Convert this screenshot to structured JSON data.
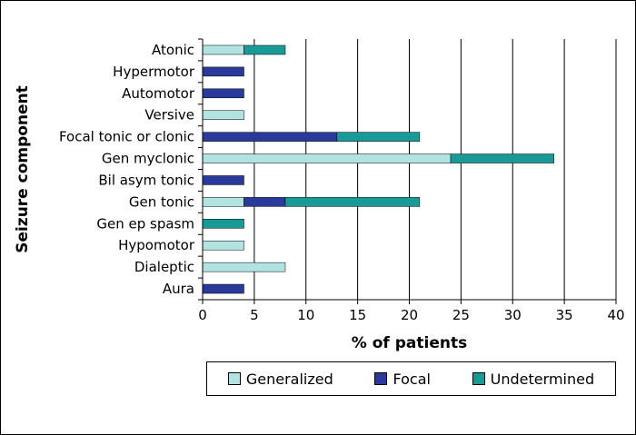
{
  "chart_data": {
    "type": "bar",
    "orientation": "horizontal",
    "stacked": true,
    "ylabel": "Seizure component",
    "xlabel": "% of patients",
    "xlim": [
      0,
      40
    ],
    "xticks": [
      0,
      5,
      10,
      15,
      20,
      25,
      30,
      35,
      40
    ],
    "categories": [
      "Atonic",
      "Hypermotor",
      "Automotor",
      "Versive",
      "Focal tonic or clonic",
      "Gen myclonic",
      "Bil asym tonic",
      "Gen tonic",
      "Gen ep spasm",
      "Hypomotor",
      "Dialeptic",
      "Aura"
    ],
    "series": [
      {
        "name": "Generalized",
        "color": "#b2e3e3",
        "values": [
          4,
          0,
          0,
          4,
          0,
          24,
          0,
          4,
          0,
          4,
          8,
          0
        ]
      },
      {
        "name": "Focal",
        "color": "#2a3a9a",
        "values": [
          0,
          4,
          4,
          0,
          13,
          0,
          4,
          4,
          0,
          0,
          0,
          4
        ]
      },
      {
        "name": "Undetermined",
        "color": "#1a9a96",
        "values": [
          4,
          0,
          0,
          0,
          8,
          10,
          0,
          13,
          4,
          0,
          0,
          0
        ]
      }
    ],
    "grid": "vertical",
    "legend_position": "bottom"
  }
}
